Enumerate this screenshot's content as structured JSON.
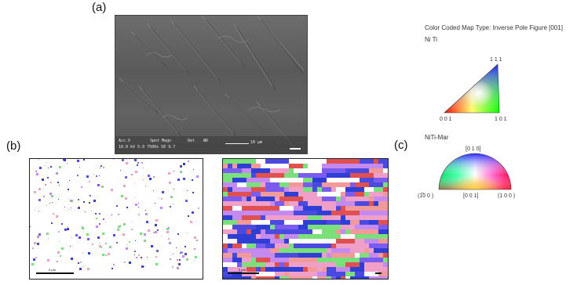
{
  "labels": {
    "a": "(a)",
    "b": "(b)",
    "c": "(c)"
  },
  "sem_info": {
    "c1": "Acc.V",
    "c2": "Spot Magn",
    "c3": "Det",
    "c4": "WD",
    "row2": "10.0 kV 5.0   7500x   SE   9.7",
    "scale": "10 µm"
  },
  "map_scale_text": "5 µm",
  "legend": {
    "title": "Color Coded Map Type: Inverse Pole Figure [001]",
    "phase1": {
      "name": "Ni Ti",
      "corner_top": "1 1 1",
      "corner_left": "0 0 1",
      "corner_right": "1 0 1"
    },
    "phase2": {
      "name": "NiTi-Mar",
      "top": "[0 1 0]",
      "left": "(1̅0 0 )",
      "center": "[0 0 1]",
      "right": "(1 0 0 )"
    }
  },
  "colors": {
    "map_palette": [
      "#f29a9a",
      "#f0a0c8",
      "#c58af0",
      "#7a5cf0",
      "#4a4ae0",
      "#2f3fd6",
      "#e05050",
      "#79e07a",
      "#ffffff"
    ],
    "triangle_001": "#ff0000",
    "triangle_101": "#00ff00",
    "triangle_111": "#0000ff"
  }
}
